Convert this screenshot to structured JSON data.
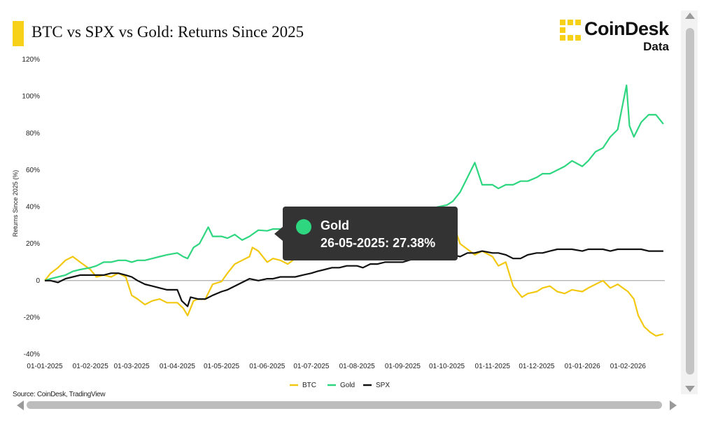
{
  "header": {
    "title": "BTC vs SPX vs Gold: Returns Since 2025",
    "accent_color": "#f7d117"
  },
  "logo": {
    "name": "CoinDesk",
    "sub": "Data"
  },
  "source": "Source: CoinDesk, TradingView",
  "tooltip": {
    "series": "Gold",
    "value_text": "26-05-2025: 27.38%",
    "dot_color": "#2ed67f"
  },
  "chart_data": {
    "type": "line",
    "title": "BTC vs SPX vs Gold: Returns Since 2025",
    "ylabel": "Returns Since 2025 (%)",
    "xlabel": "",
    "ylim": [
      -40,
      120
    ],
    "yticks": [
      -40,
      -20,
      0,
      20,
      40,
      60,
      80,
      100,
      120
    ],
    "ytick_labels": [
      "-40%",
      "-20%",
      "0",
      "20%",
      "40%",
      "60%",
      "80%",
      "100%",
      "120%"
    ],
    "xlim": [
      "2025-01-01",
      "2026-02-26"
    ],
    "xticks": [
      "2025-01-01",
      "2025-02-01",
      "2025-03-01",
      "2025-04-01",
      "2025-05-01",
      "2025-06-01",
      "2025-07-01",
      "2025-08-01",
      "2025-09-01",
      "2025-10-01",
      "2025-11-01",
      "2025-12-01",
      "2026-01-01",
      "2026-02-01"
    ],
    "xtick_labels": [
      "01-01-2025",
      "01-02-2025",
      "01-03-2025",
      "01-04-2025",
      "01-05-2025",
      "01-06-2025",
      "01-07-2025",
      "01-08-2025",
      "01-09-2025",
      "01-10-2025",
      "01-11-2025",
      "01-12-2025",
      "01-01-2026",
      "01-02-2026"
    ],
    "legend_position": "bottom-center",
    "grid": false,
    "series": [
      {
        "name": "BTC",
        "color": "#f2c811",
        "x": [
          "2025-01-01",
          "2025-01-05",
          "2025-01-10",
          "2025-01-15",
          "2025-01-20",
          "2025-01-25",
          "2025-02-01",
          "2025-02-05",
          "2025-02-10",
          "2025-02-15",
          "2025-02-20",
          "2025-02-25",
          "2025-03-01",
          "2025-03-05",
          "2025-03-10",
          "2025-03-15",
          "2025-03-20",
          "2025-03-25",
          "2025-04-01",
          "2025-04-05",
          "2025-04-08",
          "2025-04-12",
          "2025-04-15",
          "2025-04-20",
          "2025-04-25",
          "2025-05-01",
          "2025-05-05",
          "2025-05-10",
          "2025-05-15",
          "2025-05-20",
          "2025-05-22",
          "2025-05-26",
          "2025-06-01",
          "2025-06-05",
          "2025-06-10",
          "2025-06-15",
          "2025-06-20",
          "2025-06-25",
          "2025-07-01",
          "2025-07-05",
          "2025-07-10",
          "2025-07-14",
          "2025-07-20",
          "2025-07-25",
          "2025-08-01",
          "2025-08-05",
          "2025-08-10",
          "2025-08-14",
          "2025-08-20",
          "2025-08-25",
          "2025-09-01",
          "2025-09-05",
          "2025-09-10",
          "2025-09-15",
          "2025-09-20",
          "2025-09-25",
          "2025-10-01",
          "2025-10-06",
          "2025-10-10",
          "2025-10-15",
          "2025-10-20",
          "2025-10-25",
          "2025-11-01",
          "2025-11-05",
          "2025-11-10",
          "2025-11-15",
          "2025-11-21",
          "2025-11-25",
          "2025-12-01",
          "2025-12-05",
          "2025-12-10",
          "2025-12-15",
          "2025-12-20",
          "2025-12-25",
          "2026-01-01",
          "2026-01-05",
          "2026-01-10",
          "2026-01-15",
          "2026-01-20",
          "2026-01-25",
          "2026-02-01",
          "2026-02-05",
          "2026-02-08",
          "2026-02-12",
          "2026-02-16",
          "2026-02-20",
          "2026-02-25"
        ],
        "values": [
          0,
          4,
          7,
          11,
          13,
          10,
          6,
          2,
          3,
          2,
          4,
          2,
          -8,
          -10,
          -13,
          -11,
          -10,
          -12,
          -12,
          -15,
          -19,
          -11,
          -10,
          -10,
          -2,
          -0.5,
          4,
          9,
          11,
          13,
          18,
          16,
          10,
          12,
          11,
          9,
          12,
          13,
          15,
          16,
          18,
          24,
          25,
          24,
          22,
          21,
          21,
          25,
          22,
          20,
          18,
          18,
          19,
          20,
          23,
          17,
          19,
          29,
          20,
          17,
          14,
          16,
          13,
          8,
          10,
          -3,
          -9,
          -7,
          -6,
          -4,
          -3,
          -6,
          -7,
          -5,
          -6,
          -4,
          -2,
          0,
          -4,
          -2,
          -6,
          -10,
          -19,
          -25,
          -28,
          -30,
          -29
        ]
      },
      {
        "name": "Gold",
        "color": "#2ed67f",
        "x": [
          "2025-01-01",
          "2025-01-05",
          "2025-01-10",
          "2025-01-15",
          "2025-01-20",
          "2025-01-25",
          "2025-02-01",
          "2025-02-05",
          "2025-02-10",
          "2025-02-15",
          "2025-02-20",
          "2025-02-25",
          "2025-03-01",
          "2025-03-05",
          "2025-03-10",
          "2025-03-15",
          "2025-03-20",
          "2025-03-25",
          "2025-04-01",
          "2025-04-05",
          "2025-04-08",
          "2025-04-12",
          "2025-04-16",
          "2025-04-22",
          "2025-04-25",
          "2025-05-01",
          "2025-05-05",
          "2025-05-10",
          "2025-05-15",
          "2025-05-20",
          "2025-05-26",
          "2025-06-01",
          "2025-06-05",
          "2025-06-10",
          "2025-06-15",
          "2025-06-20",
          "2025-06-25",
          "2025-07-01",
          "2025-07-05",
          "2025-07-10",
          "2025-07-15",
          "2025-07-20",
          "2025-07-25",
          "2025-08-01",
          "2025-08-05",
          "2025-08-10",
          "2025-08-15",
          "2025-08-20",
          "2025-08-25",
          "2025-09-01",
          "2025-09-05",
          "2025-09-10",
          "2025-09-15",
          "2025-09-20",
          "2025-09-25",
          "2025-10-01",
          "2025-10-05",
          "2025-10-10",
          "2025-10-15",
          "2025-10-20",
          "2025-10-25",
          "2025-11-01",
          "2025-11-05",
          "2025-11-10",
          "2025-11-15",
          "2025-11-20",
          "2025-11-25",
          "2025-12-01",
          "2025-12-05",
          "2025-12-10",
          "2025-12-15",
          "2025-12-20",
          "2025-12-25",
          "2026-01-01",
          "2026-01-05",
          "2026-01-10",
          "2026-01-15",
          "2026-01-20",
          "2026-01-25",
          "2026-01-29",
          "2026-01-31",
          "2026-02-02",
          "2026-02-05",
          "2026-02-10",
          "2026-02-15",
          "2026-02-20",
          "2026-02-25"
        ],
        "values": [
          0,
          1,
          2,
          3,
          5,
          6,
          7,
          8,
          10,
          10,
          11,
          11,
          10,
          11,
          11,
          12,
          13,
          14,
          15,
          13,
          12,
          18,
          20,
          29,
          24,
          24,
          23,
          25,
          22,
          24,
          27.38,
          27,
          28,
          28,
          29,
          27,
          28,
          29,
          30,
          30,
          31,
          31,
          32,
          32,
          33,
          34,
          33,
          33,
          35,
          36,
          37,
          38,
          39,
          39,
          40,
          41,
          43,
          48,
          56,
          64,
          52,
          52,
          50,
          52,
          52,
          54,
          54,
          56,
          58,
          58,
          60,
          62,
          65,
          62,
          65,
          70,
          72,
          78,
          82,
          98,
          106,
          84,
          78,
          86,
          90,
          90,
          85
        ]
      },
      {
        "name": "SPX",
        "color": "#111111",
        "x": [
          "2025-01-01",
          "2025-01-05",
          "2025-01-10",
          "2025-01-15",
          "2025-01-20",
          "2025-01-25",
          "2025-02-01",
          "2025-02-05",
          "2025-02-10",
          "2025-02-15",
          "2025-02-20",
          "2025-02-25",
          "2025-03-01",
          "2025-03-05",
          "2025-03-10",
          "2025-03-15",
          "2025-03-20",
          "2025-03-25",
          "2025-04-01",
          "2025-04-04",
          "2025-04-08",
          "2025-04-10",
          "2025-04-15",
          "2025-04-20",
          "2025-04-25",
          "2025-05-01",
          "2025-05-05",
          "2025-05-10",
          "2025-05-15",
          "2025-05-20",
          "2025-05-26",
          "2025-06-01",
          "2025-06-05",
          "2025-06-10",
          "2025-06-15",
          "2025-06-20",
          "2025-06-25",
          "2025-07-01",
          "2025-07-05",
          "2025-07-10",
          "2025-07-15",
          "2025-07-20",
          "2025-07-25",
          "2025-08-01",
          "2025-08-05",
          "2025-08-10",
          "2025-08-15",
          "2025-08-20",
          "2025-08-25",
          "2025-09-01",
          "2025-09-05",
          "2025-09-10",
          "2025-09-15",
          "2025-09-20",
          "2025-09-25",
          "2025-10-01",
          "2025-10-05",
          "2025-10-10",
          "2025-10-15",
          "2025-10-20",
          "2025-10-25",
          "2025-11-01",
          "2025-11-05",
          "2025-11-10",
          "2025-11-15",
          "2025-11-20",
          "2025-11-25",
          "2025-12-01",
          "2025-12-05",
          "2025-12-10",
          "2025-12-15",
          "2025-12-20",
          "2025-12-25",
          "2026-01-01",
          "2026-01-05",
          "2026-01-10",
          "2026-01-15",
          "2026-01-20",
          "2026-01-25",
          "2026-02-01",
          "2026-02-05",
          "2026-02-10",
          "2026-02-15",
          "2026-02-20",
          "2026-02-25"
        ],
        "values": [
          0,
          0,
          -1,
          1,
          2,
          3,
          3,
          3,
          3,
          4,
          4,
          3,
          2,
          0,
          -2,
          -3,
          -4,
          -5,
          -5,
          -11,
          -14,
          -9,
          -10,
          -10,
          -8,
          -6,
          -5,
          -3,
          -1,
          1,
          0,
          1,
          1,
          2,
          2,
          2,
          3,
          4,
          5,
          6,
          7,
          7,
          8,
          8,
          7,
          9,
          9,
          10,
          10,
          10,
          11,
          12,
          13,
          13,
          14,
          14,
          14,
          13,
          15,
          15,
          16,
          15,
          15,
          14,
          12,
          12,
          14,
          15,
          15,
          16,
          17,
          17,
          17,
          16,
          17,
          17,
          17,
          16,
          17,
          17,
          17,
          17,
          16,
          16,
          16
        ]
      }
    ]
  }
}
